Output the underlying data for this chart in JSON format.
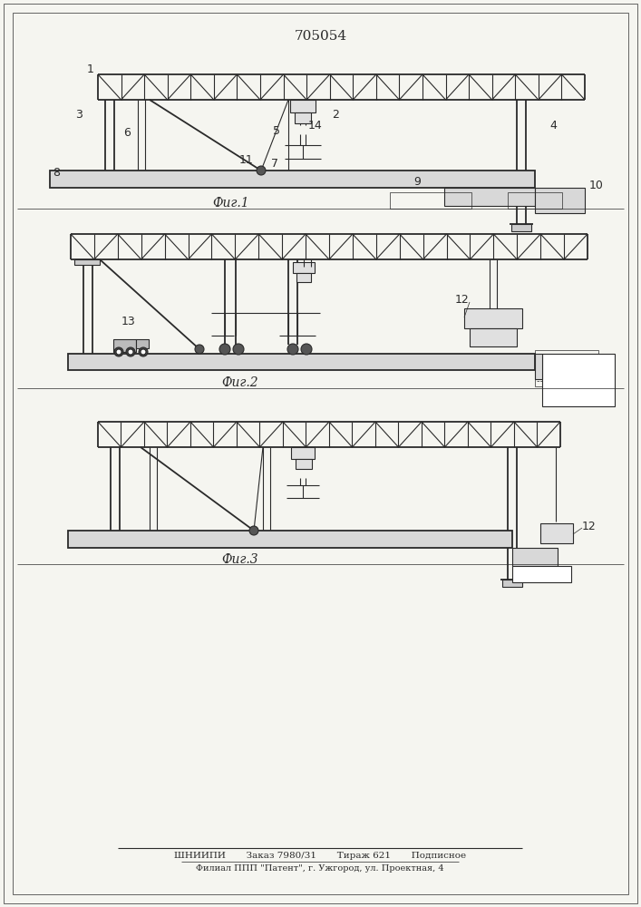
{
  "title": "705054",
  "background_color": "#f5f5f0",
  "line_color": "#2a2a2a",
  "fig1_caption": "Фиг.1",
  "fig2_caption": "Фиг.2",
  "fig3_caption": "Фиг.3",
  "footer_line1": "ШНИИПИ       Заказ 7980/31       Тираж 621       Подписное",
  "footer_line2": "Филиал ППП \"Патент\", г. Ужгород, ул. Проектная, 4"
}
